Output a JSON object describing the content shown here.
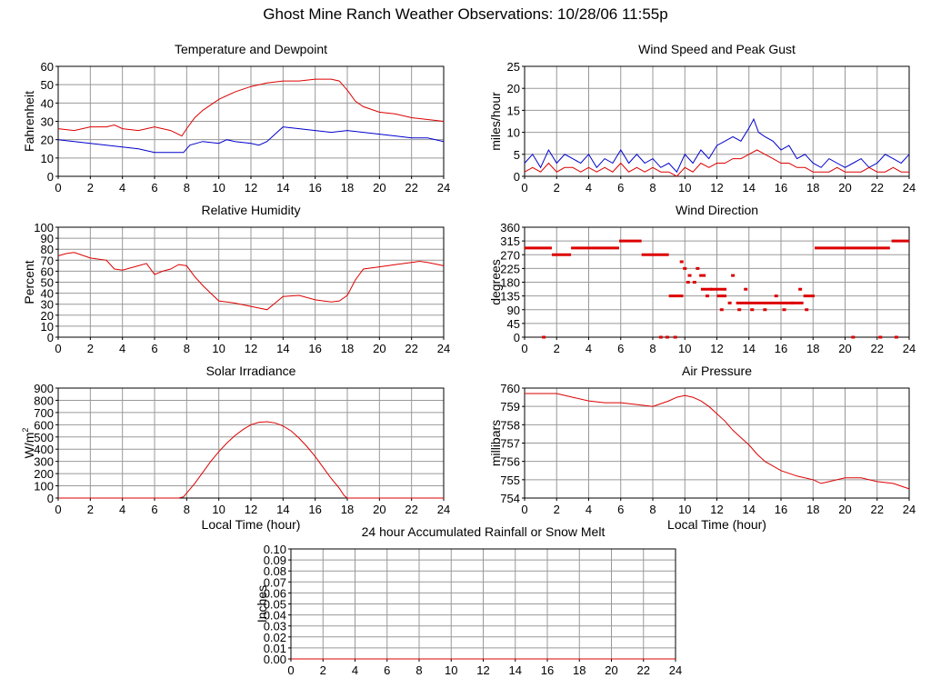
{
  "page_title": "Ghost Mine Ranch Weather Observations: 10/28/06 11:55p",
  "colors": {
    "primary_series": "#dd0000",
    "secondary_series": "#0000cc",
    "grid": "#999999"
  },
  "chart_data": [
    {
      "id": "temperature",
      "type": "line",
      "title": "Temperature and Dewpoint",
      "ylabel": "Fahrenheit",
      "xlabel": "",
      "xlim": [
        0,
        24
      ],
      "ylim": [
        0,
        60
      ],
      "xticks": [
        0,
        2,
        4,
        6,
        8,
        10,
        12,
        14,
        16,
        18,
        20,
        22,
        24
      ],
      "yticks": [
        0,
        10,
        20,
        30,
        40,
        50,
        60
      ],
      "series": [
        {
          "name": "Temperature",
          "color": "#dd0000",
          "x": [
            0,
            1,
            2,
            3,
            3.5,
            4,
            5,
            6,
            7,
            7.7,
            8,
            8.5,
            9,
            10,
            11,
            12,
            13,
            14,
            15,
            16,
            17,
            17.5,
            18,
            18.5,
            19,
            20,
            21,
            22,
            23,
            24
          ],
          "y": [
            26,
            25,
            27,
            27,
            28,
            26,
            25,
            27,
            25,
            22,
            26,
            32,
            36,
            42,
            46,
            49,
            51,
            52,
            52,
            53,
            53,
            52,
            47,
            41,
            38,
            35,
            34,
            32,
            31,
            30
          ]
        },
        {
          "name": "Dewpoint",
          "color": "#0000cc",
          "x": [
            0,
            1,
            2,
            3,
            4,
            5,
            6,
            7,
            7.8,
            8.2,
            9,
            10,
            10.5,
            11,
            12,
            12.5,
            13,
            13.5,
            14,
            15,
            16,
            17,
            18,
            19,
            20,
            21,
            22,
            23,
            24
          ],
          "y": [
            20,
            19,
            18,
            17,
            16,
            15,
            13,
            13,
            13,
            17,
            19,
            18,
            20,
            19,
            18,
            17,
            19,
            23,
            27,
            26,
            25,
            24,
            25,
            24,
            23,
            22,
            21,
            21,
            19
          ]
        }
      ]
    },
    {
      "id": "wind-speed",
      "type": "line",
      "title": "Wind Speed and Peak Gust",
      "ylabel": "miles/hour",
      "xlabel": "",
      "xlim": [
        0,
        24
      ],
      "ylim": [
        0,
        25
      ],
      "xticks": [
        0,
        2,
        4,
        6,
        8,
        10,
        12,
        14,
        16,
        18,
        20,
        22,
        24
      ],
      "yticks": [
        0,
        5,
        10,
        15,
        20,
        25
      ],
      "series": [
        {
          "name": "Peak Gust",
          "color": "#0000cc",
          "x": [
            0,
            0.5,
            1,
            1.5,
            2,
            2.5,
            3,
            3.5,
            4,
            4.5,
            5,
            5.5,
            6,
            6.5,
            7,
            7.5,
            8,
            8.5,
            9,
            9.5,
            10,
            10.5,
            11,
            11.5,
            12,
            12.5,
            13,
            13.5,
            14,
            14.3,
            14.6,
            15,
            15.5,
            16,
            16.5,
            17,
            17.5,
            18,
            18.5,
            19,
            19.5,
            20,
            20.5,
            21,
            21.5,
            22,
            22.5,
            23,
            23.5,
            24
          ],
          "y": [
            3,
            5,
            2,
            6,
            3,
            5,
            4,
            3,
            5,
            2,
            4,
            3,
            6,
            3,
            5,
            3,
            4,
            2,
            3,
            1,
            5,
            3,
            6,
            4,
            7,
            8,
            9,
            8,
            11,
            13,
            10,
            9,
            8,
            6,
            7,
            4,
            5,
            3,
            2,
            4,
            3,
            2,
            3,
            4,
            2,
            3,
            5,
            4,
            3,
            5
          ]
        },
        {
          "name": "Wind Speed",
          "color": "#dd0000",
          "x": [
            0,
            0.5,
            1,
            1.5,
            2,
            2.5,
            3,
            3.5,
            4,
            4.5,
            5,
            5.5,
            6,
            6.5,
            7,
            7.5,
            8,
            8.5,
            9,
            9.5,
            10,
            10.5,
            11,
            11.5,
            12,
            12.5,
            13,
            13.5,
            14,
            14.5,
            15,
            15.5,
            16,
            16.5,
            17,
            17.5,
            18,
            18.5,
            19,
            19.5,
            20,
            20.5,
            21,
            21.5,
            22,
            22.5,
            23,
            23.5,
            24
          ],
          "y": [
            1,
            2,
            1,
            3,
            1,
            2,
            2,
            1,
            2,
            1,
            2,
            1,
            3,
            1,
            2,
            1,
            2,
            1,
            1,
            0,
            2,
            1,
            3,
            2,
            3,
            3,
            4,
            4,
            5,
            6,
            5,
            4,
            3,
            3,
            2,
            2,
            1,
            1,
            1,
            2,
            1,
            1,
            1,
            2,
            1,
            1,
            2,
            1,
            1
          ]
        }
      ]
    },
    {
      "id": "humidity",
      "type": "line",
      "title": "Relative Humidity",
      "ylabel": "Percent",
      "xlabel": "",
      "xlim": [
        0,
        24
      ],
      "ylim": [
        0,
        100
      ],
      "xticks": [
        0,
        2,
        4,
        6,
        8,
        10,
        12,
        14,
        16,
        18,
        20,
        22,
        24
      ],
      "yticks": [
        0,
        10,
        20,
        30,
        40,
        50,
        60,
        70,
        80,
        90,
        100
      ],
      "series": [
        {
          "name": "Relative Humidity",
          "color": "#dd0000",
          "x": [
            0,
            0.5,
            1,
            2,
            3,
            3.5,
            4,
            5,
            5.5,
            6,
            6.5,
            7,
            7.5,
            8,
            8.5,
            9,
            9.5,
            10,
            11,
            12,
            13,
            13.5,
            14,
            15,
            16,
            17,
            17.5,
            18,
            18.5,
            19,
            20,
            21,
            22,
            22.5,
            23,
            24
          ],
          "y": [
            74,
            76,
            77,
            72,
            70,
            62,
            61,
            65,
            67,
            57,
            60,
            62,
            66,
            65,
            55,
            47,
            40,
            33,
            31,
            28,
            25,
            31,
            37,
            38,
            34,
            32,
            33,
            38,
            52,
            62,
            64,
            66,
            68,
            69,
            68,
            65
          ]
        }
      ]
    },
    {
      "id": "wind-direction",
      "type": "scatter",
      "title": "Wind Direction",
      "ylabel": "degrees",
      "xlabel": "",
      "xlim": [
        0,
        24
      ],
      "ylim": [
        0,
        360
      ],
      "xticks": [
        0,
        2,
        4,
        6,
        8,
        10,
        12,
        14,
        16,
        18,
        20,
        22,
        24
      ],
      "yticks": [
        0,
        45,
        90,
        135,
        180,
        225,
        270,
        315,
        360
      ],
      "segments": [
        {
          "x0": 0,
          "x1": 1.7,
          "y": 292
        },
        {
          "x0": 1.7,
          "x1": 2.9,
          "y": 270
        },
        {
          "x0": 2.9,
          "x1": 5.9,
          "y": 292
        },
        {
          "x0": 5.9,
          "x1": 7.3,
          "y": 315
        },
        {
          "x0": 7.3,
          "x1": 9.0,
          "y": 270
        },
        {
          "x0": 9.0,
          "x1": 9.9,
          "y": 135
        },
        {
          "x0": 10.9,
          "x1": 11.3,
          "y": 202
        },
        {
          "x0": 11.0,
          "x1": 11.7,
          "y": 157
        },
        {
          "x0": 11.6,
          "x1": 12.6,
          "y": 157
        },
        {
          "x0": 12.0,
          "x1": 12.6,
          "y": 135
        },
        {
          "x0": 13.2,
          "x1": 16.8,
          "y": 112
        },
        {
          "x0": 16.6,
          "x1": 17.4,
          "y": 112
        },
        {
          "x0": 17.4,
          "x1": 18.1,
          "y": 135
        },
        {
          "x0": 18.1,
          "x1": 22.8,
          "y": 292
        },
        {
          "x0": 22.9,
          "x1": 24,
          "y": 315
        }
      ],
      "points": {
        "x": [
          1.2,
          8.5,
          8.9,
          9.4,
          9.8,
          10.0,
          10.3,
          10.2,
          10.6,
          10.8,
          11.4,
          12.3,
          12.8,
          13.0,
          13.4,
          13.8,
          14.2,
          15.0,
          15.7,
          16.2,
          17.2,
          17.6,
          20.5,
          22.2,
          23.2
        ],
        "y": [
          0,
          0,
          0,
          0,
          247,
          225,
          202,
          180,
          180,
          225,
          135,
          90,
          112,
          202,
          90,
          157,
          90,
          90,
          135,
          90,
          157,
          90,
          0,
          0,
          0
        ]
      }
    },
    {
      "id": "solar",
      "type": "line",
      "title": "Solar Irradiance",
      "ylabel": "W/m2",
      "xlabel": "Local Time (hour)",
      "xlim": [
        0,
        24
      ],
      "ylim": [
        0,
        900
      ],
      "xticks": [
        0,
        2,
        4,
        6,
        8,
        10,
        12,
        14,
        16,
        18,
        20,
        22,
        24
      ],
      "yticks": [
        0,
        100,
        200,
        300,
        400,
        500,
        600,
        700,
        800,
        900
      ],
      "series": [
        {
          "name": "Solar Irradiance",
          "color": "#dd0000",
          "x": [
            0,
            7.5,
            7.8,
            8,
            8.5,
            9,
            9.5,
            10,
            10.5,
            11,
            11.5,
            12,
            12.5,
            13,
            13.5,
            14,
            14.5,
            15,
            15.5,
            16,
            16.5,
            17,
            17.5,
            17.8,
            18,
            24
          ],
          "y": [
            0,
            0,
            10,
            40,
            120,
            210,
            300,
            380,
            450,
            510,
            560,
            600,
            620,
            625,
            615,
            590,
            550,
            490,
            420,
            340,
            250,
            160,
            80,
            20,
            0,
            0
          ]
        }
      ]
    },
    {
      "id": "pressure",
      "type": "line",
      "title": "Air Pressure",
      "ylabel": "millibars",
      "xlabel": "Local Time (hour)",
      "xlim": [
        0,
        24
      ],
      "ylim": [
        754,
        760
      ],
      "xticks": [
        0,
        2,
        4,
        6,
        8,
        10,
        12,
        14,
        16,
        18,
        20,
        22,
        24
      ],
      "yticks": [
        754,
        755,
        756,
        757,
        758,
        759,
        760
      ],
      "series": [
        {
          "name": "Air Pressure",
          "color": "#dd0000",
          "x": [
            0,
            1,
            2,
            3,
            4,
            5,
            6,
            7,
            8,
            9,
            9.5,
            10,
            10.5,
            11,
            11.5,
            12,
            12.5,
            13,
            13.5,
            14,
            14.5,
            15,
            16,
            17,
            18,
            18.5,
            19,
            20,
            21,
            22,
            23,
            24
          ],
          "y": [
            759.7,
            759.7,
            759.7,
            759.5,
            759.3,
            759.2,
            759.2,
            759.1,
            759.0,
            759.3,
            759.5,
            759.6,
            759.5,
            759.3,
            759.0,
            758.6,
            758.2,
            757.7,
            757.3,
            756.9,
            756.4,
            756.0,
            755.5,
            755.2,
            755.0,
            754.8,
            754.9,
            755.1,
            755.1,
            754.9,
            754.8,
            754.5
          ]
        }
      ]
    },
    {
      "id": "rainfall",
      "type": "line",
      "title": "24 hour Accumulated Rainfall or Snow Melt",
      "ylabel": "Inches",
      "xlabel": "",
      "xlim": [
        0,
        24
      ],
      "ylim": [
        0,
        0.1
      ],
      "xticks": [
        0,
        2,
        4,
        6,
        8,
        10,
        12,
        14,
        16,
        18,
        20,
        22,
        24
      ],
      "yticks": [
        0.0,
        0.01,
        0.02,
        0.03,
        0.04,
        0.05,
        0.06,
        0.07,
        0.08,
        0.09,
        0.1
      ],
      "ytick_labels": [
        "0.00",
        "0.01",
        "0.02",
        "0.03",
        "0.04",
        "0.05",
        "0.06",
        "0.07",
        "0.08",
        "0.09",
        "0.10"
      ],
      "series": [
        {
          "name": "Rainfall",
          "color": "#dd0000",
          "x": [
            0,
            24
          ],
          "y": [
            0,
            0
          ]
        }
      ]
    }
  ]
}
